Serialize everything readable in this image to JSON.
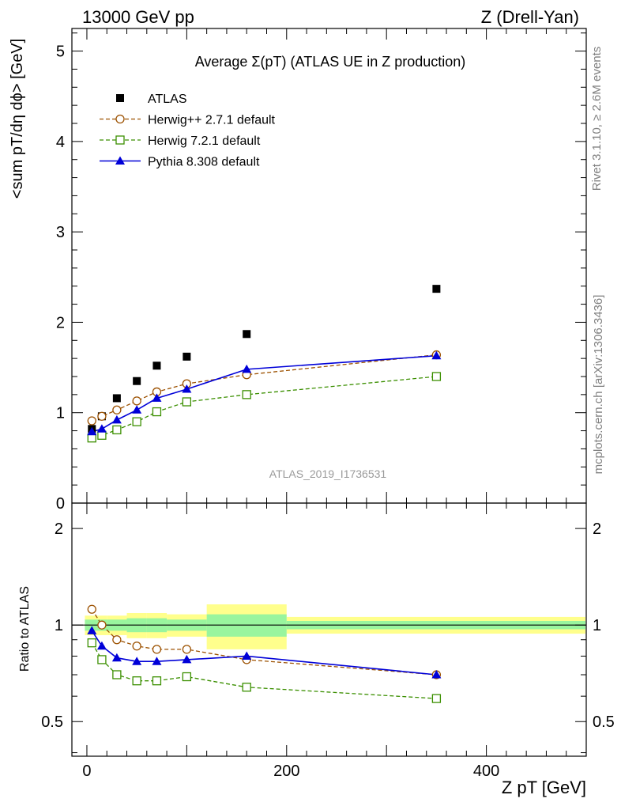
{
  "header": {
    "left": "13000 GeV pp",
    "right": "Z (Drell-Yan)"
  },
  "side_labels": {
    "rivet": "Rivet 3.1.10, ≥ 2.6M events",
    "mcplots": "mcplots.cern.ch [arXiv:1306.3436]"
  },
  "watermark": "ATLAS_2019_I1736531",
  "chart_data": [
    {
      "type": "scatter",
      "title": "Average Σ(pT) (ATLAS UE in Z production)",
      "ylabel": "<sum pT/dη dϕ> [GeV]",
      "xlim": [
        -15,
        500
      ],
      "ylim": [
        0,
        5.25
      ],
      "y_ticks": [
        "0",
        "1",
        "2",
        "3",
        "4",
        "5"
      ],
      "legend_position": "top-left",
      "series": [
        {
          "name": "ATLAS",
          "color": "#000000",
          "marker": "filled-square",
          "x": [
            5,
            15,
            30,
            50,
            70,
            100,
            160,
            350
          ],
          "y": [
            0.82,
            0.96,
            1.16,
            1.35,
            1.52,
            1.62,
            1.87,
            2.37
          ]
        },
        {
          "name": "Herwig++ 2.7.1 default",
          "color": "#9c5100",
          "marker": "open-circle",
          "line": "dashed",
          "x": [
            5,
            15,
            30,
            50,
            70,
            100,
            160,
            350
          ],
          "y": [
            0.91,
            0.96,
            1.03,
            1.13,
            1.23,
            1.32,
            1.42,
            1.64
          ]
        },
        {
          "name": "Herwig 7.2.1 default",
          "color": "#3b8f00",
          "marker": "open-square",
          "line": "dashed",
          "x": [
            5,
            15,
            30,
            50,
            70,
            100,
            160,
            350
          ],
          "y": [
            0.72,
            0.75,
            0.81,
            0.9,
            1.01,
            1.12,
            1.2,
            1.4
          ]
        },
        {
          "name": "Pythia 8.308 default",
          "color": "#0000d8",
          "marker": "filled-triangle",
          "line": "solid",
          "x": [
            5,
            15,
            30,
            50,
            70,
            100,
            160,
            350
          ],
          "y": [
            0.79,
            0.82,
            0.92,
            1.03,
            1.16,
            1.26,
            1.48,
            1.63
          ]
        }
      ]
    },
    {
      "type": "scatter",
      "xlabel": "Z pT [GeV]",
      "ylabel": "Ratio to ATLAS",
      "x_ticks": [
        "0",
        "200",
        "400"
      ],
      "y_ticks": [
        "0.5",
        "1",
        "2"
      ],
      "ylim": [
        0.39,
        2.4
      ],
      "y_scale": "log",
      "reference": 1,
      "uncertainty_bins": [
        {
          "x0": 0,
          "x1": 10,
          "stat": 0.04,
          "total": 0.07
        },
        {
          "x0": 10,
          "x1": 20,
          "stat": 0.04,
          "total": 0.07
        },
        {
          "x0": 20,
          "x1": 40,
          "stat": 0.04,
          "total": 0.07
        },
        {
          "x0": 40,
          "x1": 60,
          "stat": 0.05,
          "total": 0.09
        },
        {
          "x0": 60,
          "x1": 80,
          "stat": 0.05,
          "total": 0.09
        },
        {
          "x0": 80,
          "x1": 120,
          "stat": 0.04,
          "total": 0.08
        },
        {
          "x0": 120,
          "x1": 200,
          "stat": 0.08,
          "total": 0.16
        },
        {
          "x0": 200,
          "x1": 500,
          "stat": 0.03,
          "total": 0.06
        }
      ],
      "series": [
        {
          "name": "Herwig++ 2.7.1 default",
          "color": "#9c5100",
          "x": [
            5,
            15,
            30,
            50,
            70,
            100,
            160,
            350
          ],
          "y": [
            1.12,
            1.0,
            0.9,
            0.86,
            0.84,
            0.84,
            0.78,
            0.7
          ]
        },
        {
          "name": "Herwig 7.2.1 default",
          "color": "#3b8f00",
          "x": [
            5,
            15,
            30,
            50,
            70,
            100,
            160,
            350
          ],
          "y": [
            0.88,
            0.78,
            0.7,
            0.67,
            0.67,
            0.69,
            0.64,
            0.59
          ]
        },
        {
          "name": "Pythia 8.308 default",
          "color": "#0000d8",
          "x": [
            5,
            15,
            30,
            50,
            70,
            100,
            160,
            350
          ],
          "y": [
            0.96,
            0.86,
            0.79,
            0.77,
            0.77,
            0.78,
            0.8,
            0.7
          ]
        }
      ]
    }
  ]
}
